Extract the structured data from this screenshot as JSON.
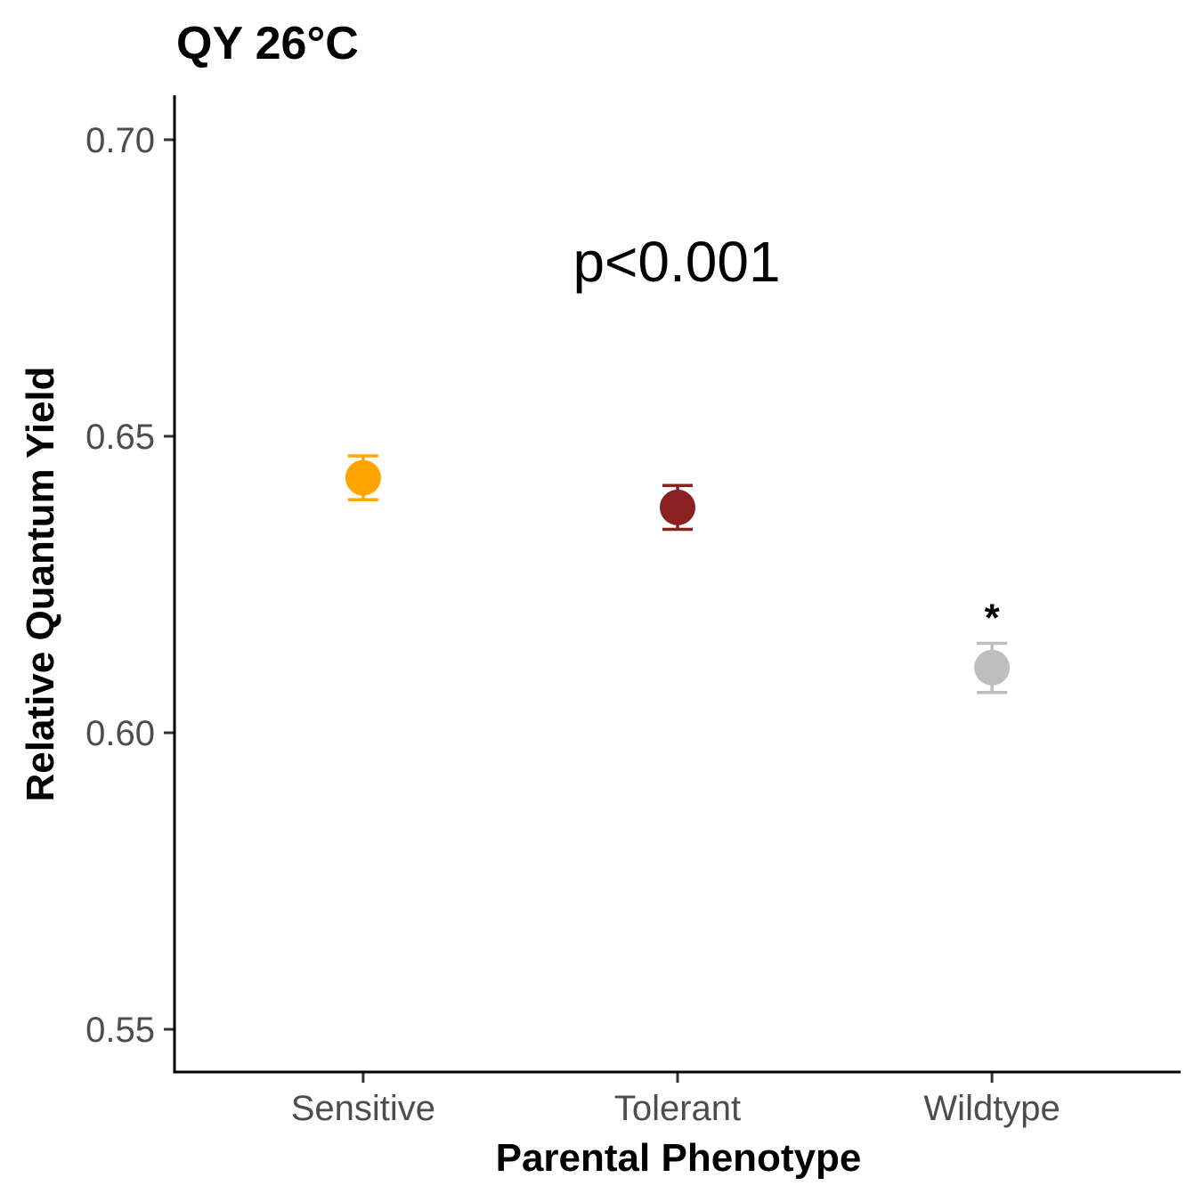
{
  "chart_data": {
    "type": "scatter",
    "title": "QY 26°C",
    "xlabel": "Parental Phenotype",
    "ylabel": "Relative Quantum Yield",
    "categories": [
      "Sensitive",
      "Tolerant",
      "Wildtype"
    ],
    "points": [
      {
        "category": "Sensitive",
        "value": 0.643,
        "lower": 0.6393,
        "upper": 0.6467,
        "color": "#FFA500",
        "marker": ""
      },
      {
        "category": "Tolerant",
        "value": 0.638,
        "lower": 0.6343,
        "upper": 0.6417,
        "color": "#8B2020",
        "marker": ""
      },
      {
        "category": "Wildtype",
        "value": 0.611,
        "lower": 0.6068,
        "upper": 0.6151,
        "color": "#BEBEBE",
        "marker": "*"
      }
    ],
    "ylim": [
      0.5428,
      0.7075
    ],
    "yticks": [
      {
        "value": 0.55,
        "label": "0.55"
      },
      {
        "value": 0.6,
        "label": "0.60"
      },
      {
        "value": 0.65,
        "label": "0.65"
      },
      {
        "value": 0.7,
        "label": "0.70"
      }
    ],
    "annotation": "p<0.001",
    "grid": false,
    "legend": "none"
  }
}
